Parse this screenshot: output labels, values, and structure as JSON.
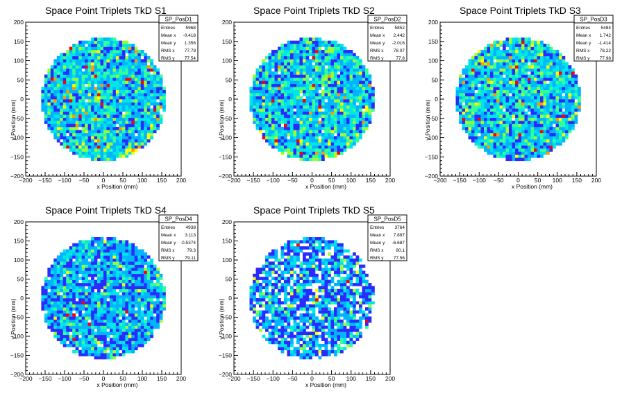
{
  "chart_data": [
    {
      "type": "heatmap",
      "title": "Space Point Triplets TkD S1",
      "xlabel": "x Position (mm)",
      "ylabel": "y Position (mm)",
      "xlim": [
        -200,
        200
      ],
      "ylim": [
        -200,
        200
      ],
      "xticks": [
        "−200",
        "−150",
        "−100",
        "−50",
        "0",
        "50",
        "100",
        "150",
        "200"
      ],
      "yticks": [
        "−200",
        "−150",
        "−100",
        "−50",
        "0",
        "50",
        "100",
        "150",
        "200"
      ],
      "stats": {
        "name": "SP_PosD1",
        "rows": [
          {
            "label": "Entries",
            "value": "5968"
          },
          {
            "label": "Mean x",
            "value": "-0.418"
          },
          {
            "label": "Mean y",
            "value": "1.356"
          },
          {
            "label": "RMS x",
            "value": "77.79"
          },
          {
            "label": "RMS y",
            "value": "77.54"
          }
        ]
      },
      "seed": 11,
      "density": "high"
    },
    {
      "type": "heatmap",
      "title": "Space Point Triplets TkD S2",
      "xlabel": "x Position (mm)",
      "ylabel": "y Position (mm)",
      "xlim": [
        -200,
        200
      ],
      "ylim": [
        -200,
        200
      ],
      "xticks": [
        "−200",
        "−150",
        "−100",
        "−50",
        "0",
        "50",
        "100",
        "150",
        "200"
      ],
      "yticks": [
        "−200",
        "−150",
        "−100",
        "−50",
        "0",
        "50",
        "100",
        "150",
        "200"
      ],
      "stats": {
        "name": "SP_PosD2",
        "rows": [
          {
            "label": "Entries",
            "value": "5852"
          },
          {
            "label": "Mean x",
            "value": "2.442"
          },
          {
            "label": "Mean y",
            "value": "-2.016"
          },
          {
            "label": "RMS x",
            "value": "78.07"
          },
          {
            "label": "RMS y",
            "value": "77.8"
          }
        ]
      },
      "seed": 23,
      "density": "high"
    },
    {
      "type": "heatmap",
      "title": "Space Point Triplets TkD S3",
      "xlabel": "x Position (mm)",
      "ylabel": "y Position (mm)",
      "xlim": [
        -200,
        200
      ],
      "ylim": [
        -200,
        200
      ],
      "xticks": [
        "−200",
        "−150",
        "−100",
        "−50",
        "0",
        "50",
        "100",
        "150",
        "200"
      ],
      "yticks": [
        "−200",
        "−150",
        "−100",
        "−50",
        "0",
        "50",
        "100",
        "150",
        "200"
      ],
      "stats": {
        "name": "SP_PosD3",
        "rows": [
          {
            "label": "Entries",
            "value": "5484"
          },
          {
            "label": "Mean x",
            "value": "1.742"
          },
          {
            "label": "Mean y",
            "value": "-1.414"
          },
          {
            "label": "RMS x",
            "value": "78.22"
          },
          {
            "label": "RMS y",
            "value": "77.98"
          }
        ]
      },
      "seed": 37,
      "density": "high"
    },
    {
      "type": "heatmap",
      "title": "Space Point Triplets TkD S4",
      "xlabel": "x Position (mm)",
      "ylabel": "y Position (mm)",
      "xlim": [
        -200,
        200
      ],
      "ylim": [
        -200,
        200
      ],
      "xticks": [
        "−200",
        "−150",
        "−100",
        "−50",
        "0",
        "50",
        "100",
        "150",
        "200"
      ],
      "yticks": [
        "−200",
        "−150",
        "−100",
        "−50",
        "0",
        "50",
        "100",
        "150",
        "200"
      ],
      "stats": {
        "name": "SP_PosD4",
        "rows": [
          {
            "label": "Entries",
            "value": "4938"
          },
          {
            "label": "Mean x",
            "value": "3.113"
          },
          {
            "label": "Mean y",
            "value": "-0.5374"
          },
          {
            "label": "RMS x",
            "value": "79.3"
          },
          {
            "label": "RMS y",
            "value": "79.11"
          }
        ]
      },
      "seed": 53,
      "density": "medium"
    },
    {
      "type": "heatmap",
      "title": "Space Point Triplets TkD S5",
      "xlabel": "x Position (mm)",
      "ylabel": "y Position (mm)",
      "xlim": [
        -200,
        200
      ],
      "ylim": [
        -200,
        200
      ],
      "xticks": [
        "−200",
        "−150",
        "−100",
        "−50",
        "0",
        "50",
        "100",
        "150",
        "200"
      ],
      "yticks": [
        "−200",
        "−150",
        "−100",
        "−50",
        "0",
        "50",
        "100",
        "150",
        "200"
      ],
      "stats": {
        "name": "SP_PosD5",
        "rows": [
          {
            "label": "Entries",
            "value": "3764"
          },
          {
            "label": "Mean x",
            "value": "7.897"
          },
          {
            "label": "Mean y",
            "value": "-6.687"
          },
          {
            "label": "RMS x",
            "value": "80.1"
          },
          {
            "label": "RMS y",
            "value": "77.56"
          }
        ]
      },
      "seed": 71,
      "density": "low"
    }
  ],
  "colors": {
    "palette": [
      "#2b2bff",
      "#00b4ff",
      "#00e6e6",
      "#33ff99",
      "#99ff33",
      "#ffff00",
      "#ff9900",
      "#ff0000"
    ],
    "frame": "#000000",
    "background": "#ffffff"
  }
}
